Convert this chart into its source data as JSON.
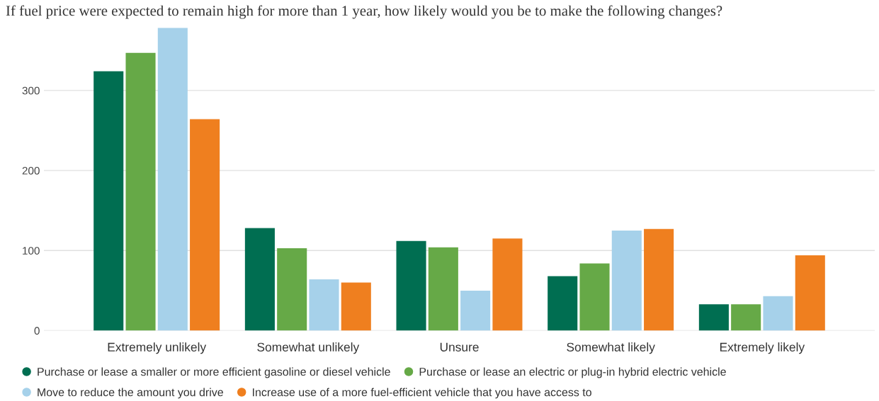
{
  "chart_data": {
    "type": "bar",
    "title": "If fuel price were expected to remain high for more than 1 year, how likely would you be to make the following changes?",
    "categories": [
      "Extremely unlikely",
      "Somewhat unlikely",
      "Unsure",
      "Somewhat likely",
      "Extremely likely"
    ],
    "series": [
      {
        "name": "Purchase or lease a smaller or more efficient gasoline or diesel vehicle",
        "color": "#006e51",
        "values": [
          324,
          128,
          112,
          68,
          33
        ]
      },
      {
        "name": "Purchase or lease an electric or plug-in hybrid electric vehicle",
        "color": "#66a947",
        "values": [
          347,
          103,
          104,
          84,
          33
        ]
      },
      {
        "name": "Move to reduce the amount you drive",
        "color": "#a6d1ea",
        "values": [
          378,
          64,
          50,
          125,
          43
        ]
      },
      {
        "name": "Increase use of a more fuel-efficient vehicle that you have access to",
        "color": "#ef7f1f",
        "values": [
          264,
          60,
          115,
          127,
          94
        ]
      }
    ],
    "ylim": [
      0,
      380
    ],
    "yticks": [
      0,
      100,
      200,
      300
    ],
    "grid": "y",
    "legend": "bottom"
  }
}
